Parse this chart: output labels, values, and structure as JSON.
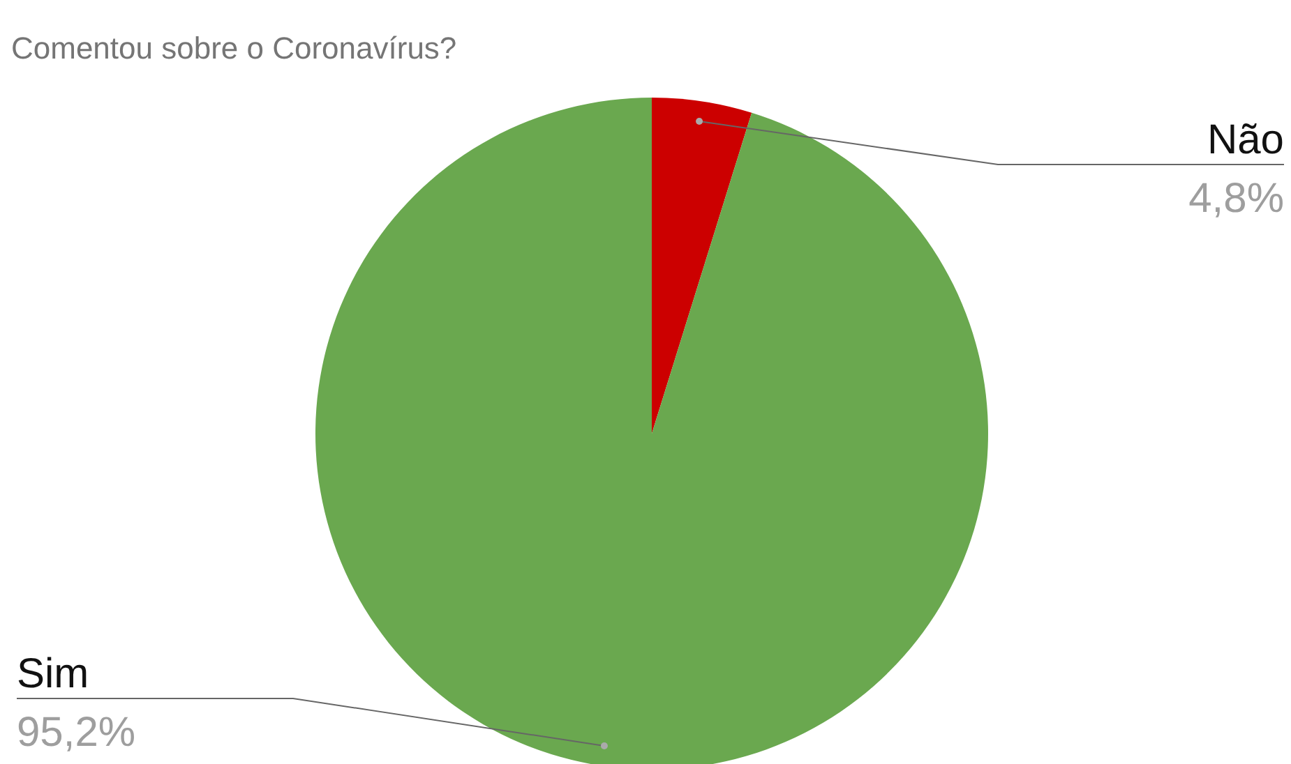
{
  "chart_data": {
    "type": "pie",
    "title": "Comentou sobre o Coronavírus?",
    "categories": [
      "Não",
      "Sim"
    ],
    "values": [
      4.8,
      95.2
    ],
    "colors": [
      "#cc0000",
      "#6aa84f"
    ],
    "value_labels": [
      "4,8%",
      "95,2%"
    ]
  }
}
